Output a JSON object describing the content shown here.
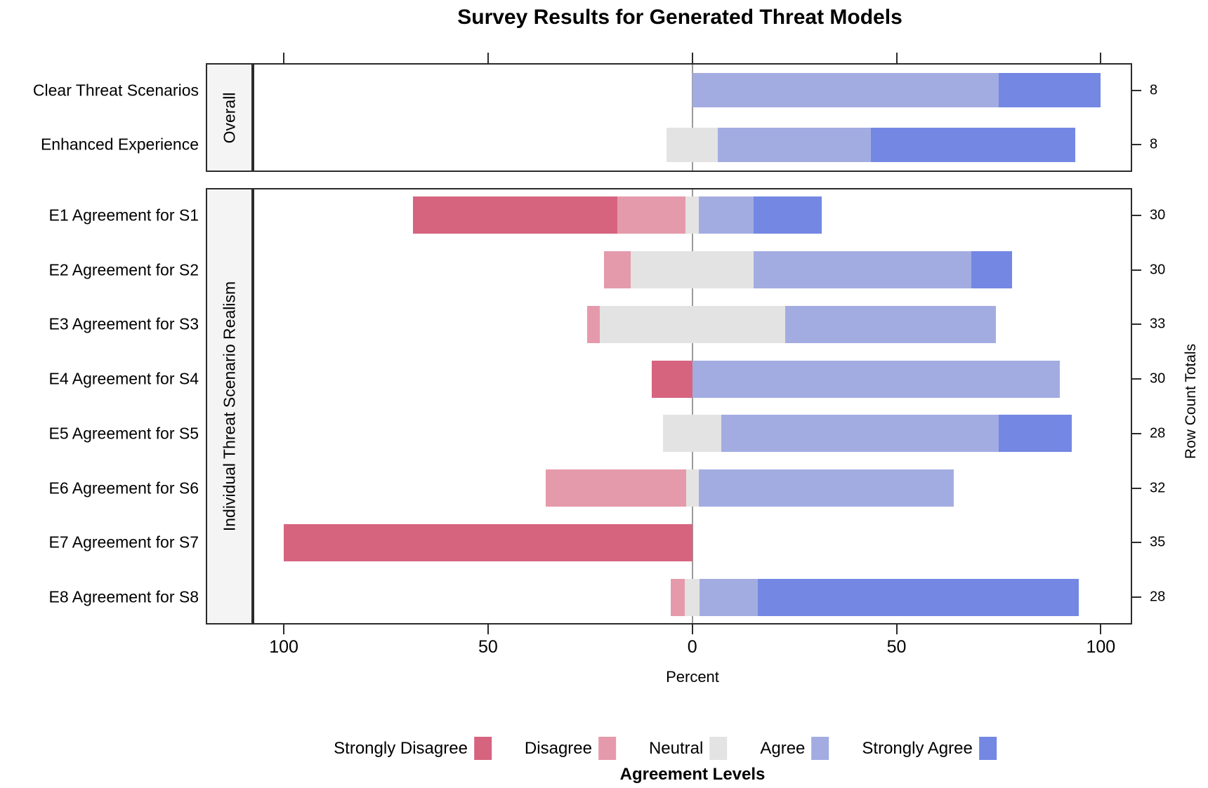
{
  "chart_data": {
    "type": "bar",
    "subtype": "diverging-stacked-likert",
    "title": "Survey Results for Generated Threat Models",
    "xlabel": "Percent",
    "right_axis_label": "Row Count Totals",
    "x_axis": {
      "tick_positions": [
        -100,
        -50,
        0,
        50,
        100
      ],
      "tick_labels": [
        "100",
        "50",
        "0",
        "50",
        "100"
      ],
      "xlim": [
        -107.6,
        107.7
      ],
      "grid": false,
      "zero_reference_line": true
    },
    "levels": [
      "Strongly Disagree",
      "Disagree",
      "Neutral",
      "Agree",
      "Strongly Agree"
    ],
    "colors": {
      "strongly_disagree": "#d6647f",
      "disagree": "#e59aab",
      "neutral": "#e3e3e3",
      "agree": "#a3ace1",
      "strongly_agree": "#7387e3"
    },
    "neutral_centered_on_zero": true,
    "legend": {
      "title": "Agreement Levels",
      "position": "bottom"
    },
    "panels": [
      {
        "label": "Overall",
        "rows": [
          {
            "label": "Clear Threat Scenarios",
            "row_total": 8,
            "percentages": [
              0,
              0,
              0,
              75,
              25
            ]
          },
          {
            "label": "Enhanced Experience",
            "row_total": 8,
            "percentages": [
              0,
              0,
              12.5,
              37.5,
              50
            ]
          }
        ]
      },
      {
        "label": "Individual Threat Scenario Realism",
        "rows": [
          {
            "label": "E1 Agreement for S1",
            "row_total": 30,
            "percentages": [
              50,
              16.67,
              3.33,
              13.33,
              16.67
            ]
          },
          {
            "label": "E2 Agreement for S2",
            "row_total": 30,
            "percentages": [
              0,
              6.67,
              30,
              53.33,
              10
            ]
          },
          {
            "label": "E3 Agreement for S3",
            "row_total": 33,
            "percentages": [
              0,
              3.03,
              45.45,
              51.52,
              0
            ]
          },
          {
            "label": "E4 Agreement for S4",
            "row_total": 30,
            "percentages": [
              10,
              0,
              0,
              90,
              0
            ]
          },
          {
            "label": "E5 Agreement for S5",
            "row_total": 28,
            "percentages": [
              0,
              0,
              14.29,
              67.86,
              17.86
            ]
          },
          {
            "label": "E6 Agreement for S6",
            "row_total": 32,
            "percentages": [
              0,
              34.38,
              3.13,
              62.5,
              0
            ]
          },
          {
            "label": "E7 Agreement for S7",
            "row_total": 35,
            "percentages": [
              100,
              0,
              0,
              0,
              0
            ]
          },
          {
            "label": "E8 Agreement for S8",
            "row_total": 28,
            "percentages": [
              0,
              3.57,
              3.57,
              14.29,
              78.57
            ]
          }
        ]
      }
    ]
  }
}
